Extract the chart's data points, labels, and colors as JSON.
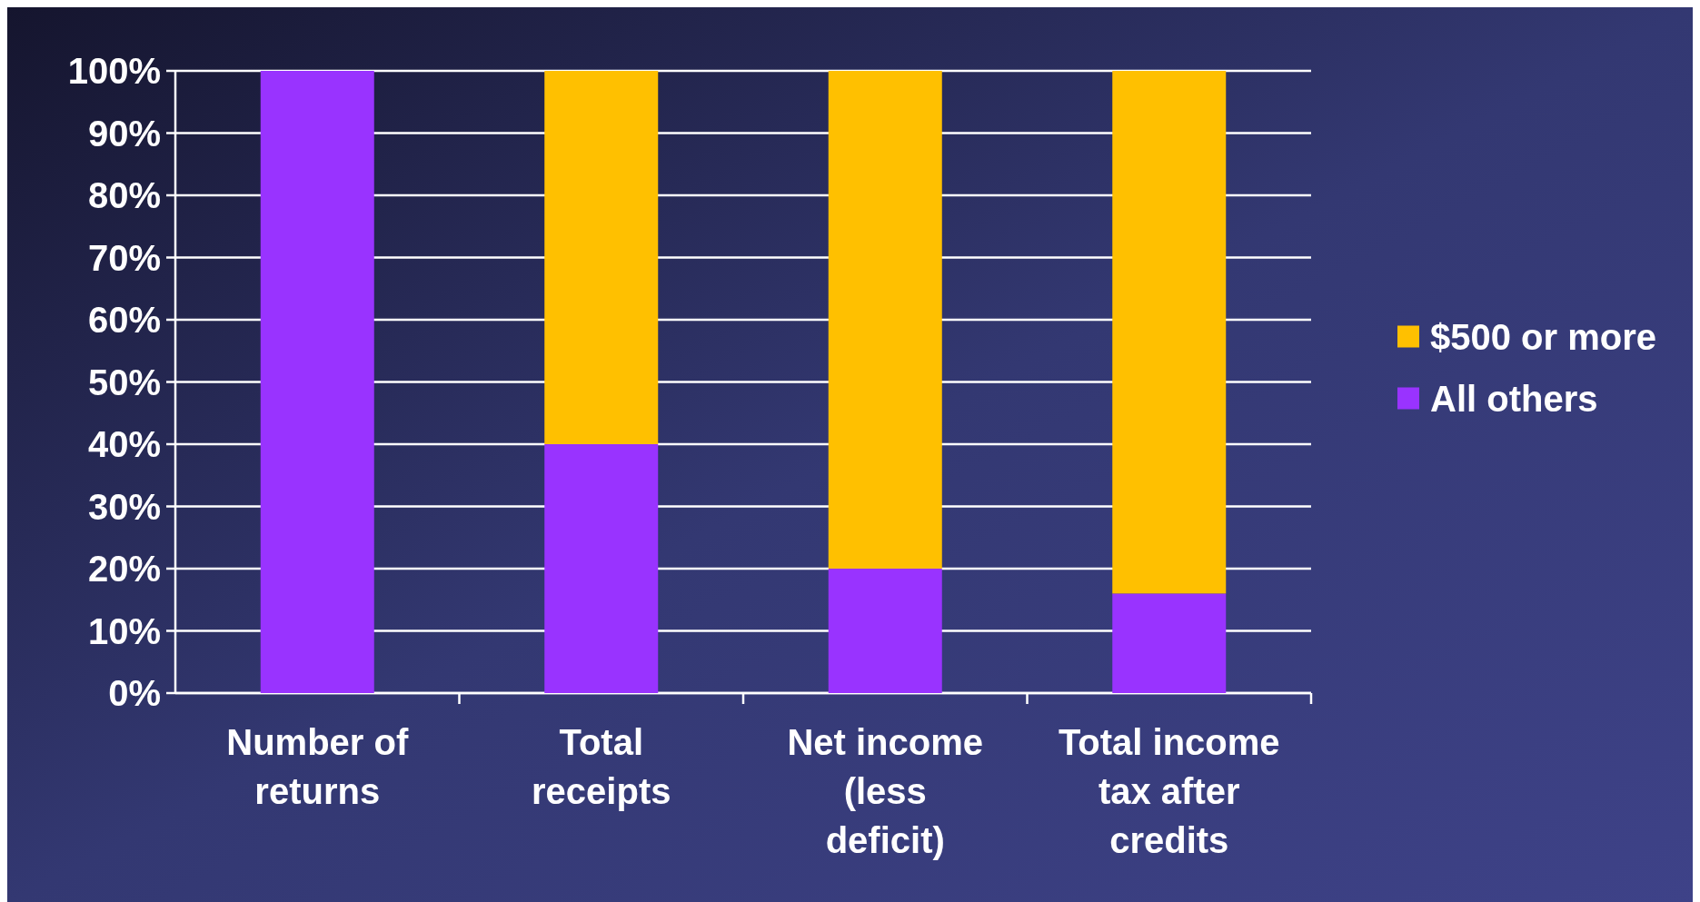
{
  "chart_data": {
    "type": "bar",
    "stacked": true,
    "categories": [
      "Number of returns",
      "Total receipts",
      "Net income (less deficit)",
      "Total income tax after credits"
    ],
    "series": [
      {
        "name": "All others",
        "color": "#9933ff",
        "values": [
          100,
          40,
          20,
          16
        ]
      },
      {
        "name": "$500 or more",
        "color": "#ffc000",
        "values": [
          0,
          60,
          80,
          84
        ]
      }
    ],
    "ylim": [
      0,
      100
    ],
    "yticks": [
      {
        "value": 0,
        "label": "0%"
      },
      {
        "value": 10,
        "label": "10%"
      },
      {
        "value": 20,
        "label": "20%"
      },
      {
        "value": 30,
        "label": "30%"
      },
      {
        "value": 40,
        "label": "40%"
      },
      {
        "value": 50,
        "label": "50%"
      },
      {
        "value": 60,
        "label": "60%"
      },
      {
        "value": 70,
        "label": "70%"
      },
      {
        "value": 80,
        "label": "80%"
      },
      {
        "value": 90,
        "label": "90%"
      },
      {
        "value": 100,
        "label": "100%"
      }
    ],
    "grid": "y",
    "legend": "right"
  }
}
